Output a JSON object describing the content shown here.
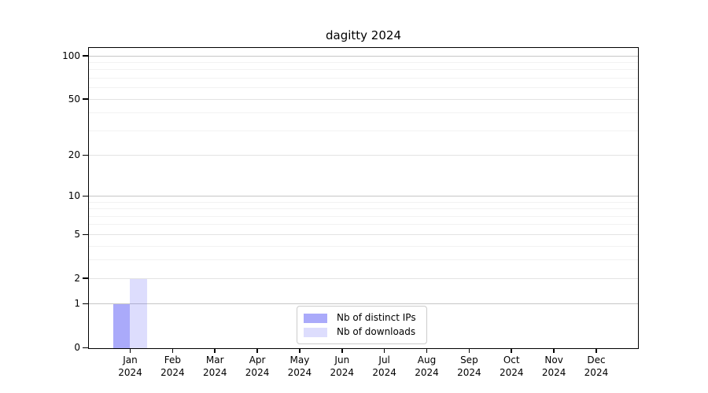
{
  "chart_data": {
    "type": "bar",
    "title": "dagitty 2024",
    "categories": [
      "Jan",
      "Feb",
      "Mar",
      "Apr",
      "May",
      "Jun",
      "Jul",
      "Aug",
      "Sep",
      "Oct",
      "Nov",
      "Dec"
    ],
    "x_tick_sublabel": "2024",
    "series": [
      {
        "name": "Nb of distinct IPs",
        "color": "rgba(100,100,245,0.55)",
        "values": [
          1,
          0,
          0,
          0,
          0,
          0,
          0,
          0,
          0,
          0,
          0,
          0
        ]
      },
      {
        "name": "Nb of downloads",
        "color": "rgba(100,100,245,0.22)",
        "values": [
          2,
          0,
          0,
          0,
          0,
          0,
          0,
          0,
          0,
          0,
          0,
          0
        ]
      }
    ],
    "xlabel": "",
    "ylabel": "",
    "y_scale": "log1p",
    "y_ticks": [
      0,
      1,
      2,
      5,
      10,
      20,
      50,
      100
    ],
    "y_minor_gridlines": [
      3,
      4,
      6,
      7,
      8,
      9,
      30,
      40,
      60,
      70,
      80,
      90
    ],
    "ylim": [
      0,
      113
    ],
    "grid": true,
    "legend_position": "bottom-center",
    "colors": {
      "decade_gridline": "#c6c6c6",
      "major_gridline": "#e3e3e3",
      "minor_gridline": "#f2f2f2",
      "spine": "#000000",
      "text": "#000000",
      "legend_border": "#cccccc"
    }
  }
}
